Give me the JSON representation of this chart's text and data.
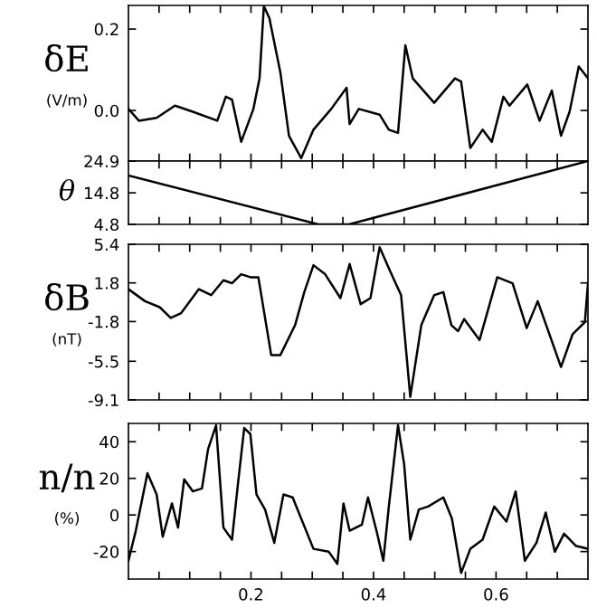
{
  "chart_data": [
    {
      "type": "line",
      "ylabel": "δE\n(V/m)",
      "tick_labels": "y",
      "xlim": [
        0,
        0.75
      ],
      "ylim": [
        -0.124,
        0.258
      ],
      "xticks": [
        {
          "value": 0.05,
          "label": null
        },
        {
          "value": 0.1,
          "label": null
        },
        {
          "value": 0.15,
          "label": null
        },
        {
          "value": 0.2,
          "label": null
        },
        {
          "value": 0.25,
          "label": null
        },
        {
          "value": 0.3,
          "label": null
        },
        {
          "value": 0.35,
          "label": null
        },
        {
          "value": 0.4,
          "label": null
        },
        {
          "value": 0.45,
          "label": null
        },
        {
          "value": 0.5,
          "label": null
        },
        {
          "value": 0.55,
          "label": null
        },
        {
          "value": 0.6,
          "label": null
        },
        {
          "value": 0.65,
          "label": null
        },
        {
          "value": 0.7,
          "label": null
        }
      ],
      "yticks": [
        {
          "value": 0,
          "label": "0.0"
        },
        {
          "value": 0.2,
          "label": "0.2"
        }
      ],
      "series": [
        {
          "color": "#000000",
          "x": [
            0,
            0.017,
            0.046,
            0.076,
            0.105,
            0.145,
            0.159,
            0.169,
            0.184,
            0.204,
            0.214,
            0.221,
            0.23,
            0.248,
            0.262,
            0.282,
            0.302,
            0.331,
            0.356,
            0.361,
            0.376,
            0.41,
            0.425,
            0.44,
            0.452,
            0.464,
            0.499,
            0.533,
            0.543,
            0.558,
            0.578,
            0.593,
            0.612,
            0.622,
            0.651,
            0.671,
            0.691,
            0.706,
            0.72,
            0.735,
            0.75
          ],
          "values": [
            0.004,
            -0.025,
            -0.018,
            0.012,
            -0.003,
            -0.025,
            0.034,
            0.027,
            -0.077,
            0.004,
            0.079,
            0.256,
            0.227,
            0.093,
            -0.062,
            -0.117,
            -0.047,
            0.004,
            0.056,
            -0.033,
            0.004,
            -0.01,
            -0.047,
            -0.055,
            0.16,
            0.079,
            0.019,
            0.079,
            0.071,
            -0.092,
            -0.047,
            -0.077,
            0.034,
            0.012,
            0.064,
            -0.025,
            0.049,
            -0.062,
            -0.003,
            0.108,
            0.079
          ]
        }
      ]
    },
    {
      "type": "line",
      "ylabel": "θ",
      "tick_labels": "y",
      "xlim": [
        0,
        0.75
      ],
      "ylim": [
        4.8,
        24.9
      ],
      "xticks": [
        {
          "value": 0.05,
          "label": null
        },
        {
          "value": 0.1,
          "label": null
        },
        {
          "value": 0.15,
          "label": null
        },
        {
          "value": 0.2,
          "label": null
        },
        {
          "value": 0.25,
          "label": null
        },
        {
          "value": 0.3,
          "label": null
        },
        {
          "value": 0.35,
          "label": null
        },
        {
          "value": 0.4,
          "label": null
        },
        {
          "value": 0.45,
          "label": null
        },
        {
          "value": 0.5,
          "label": null
        },
        {
          "value": 0.55,
          "label": null
        },
        {
          "value": 0.6,
          "label": null
        },
        {
          "value": 0.65,
          "label": null
        },
        {
          "value": 0.7,
          "label": null
        }
      ],
      "yticks": [
        4.8,
        14.8,
        24.9
      ],
      "series": [
        {
          "color": "#000000",
          "x": [
            0,
            0.31,
            0.36,
            0.75
          ],
          "values": [
            20.3,
            4.8,
            4.8,
            24.9
          ]
        }
      ]
    },
    {
      "type": "line",
      "ylabel": "δB\n(nT)",
      "tick_labels": "y",
      "xlim": [
        0,
        0.75
      ],
      "ylim": [
        -9.1,
        5.4
      ],
      "xticks": [
        {
          "value": 0.05,
          "label": null
        },
        {
          "value": 0.1,
          "label": null
        },
        {
          "value": 0.15,
          "label": null
        },
        {
          "value": 0.2,
          "label": null
        },
        {
          "value": 0.25,
          "label": null
        },
        {
          "value": 0.3,
          "label": null
        },
        {
          "value": 0.35,
          "label": null
        },
        {
          "value": 0.4,
          "label": null
        },
        {
          "value": 0.45,
          "label": null
        },
        {
          "value": 0.5,
          "label": null
        },
        {
          "value": 0.55,
          "label": null
        },
        {
          "value": 0.6,
          "label": null
        },
        {
          "value": 0.65,
          "label": null
        },
        {
          "value": 0.7,
          "label": null
        }
      ],
      "yticks": [
        -9.1,
        -5.5,
        -1.8,
        1.8,
        5.4
      ],
      "series": [
        {
          "color": "#000000",
          "x": [
            0,
            0.027,
            0.051,
            0.069,
            0.086,
            0.115,
            0.135,
            0.155,
            0.169,
            0.184,
            0.199,
            0.212,
            0.233,
            0.248,
            0.272,
            0.287,
            0.302,
            0.321,
            0.346,
            0.361,
            0.379,
            0.395,
            0.41,
            0.425,
            0.445,
            0.46,
            0.478,
            0.499,
            0.514,
            0.527,
            0.538,
            0.548,
            0.573,
            0.602,
            0.627,
            0.65,
            0.668,
            0.706,
            0.725,
            0.745,
            0.75
          ],
          "values": [
            1.22,
            0.1,
            -0.46,
            -1.46,
            -1.01,
            1.22,
            0.66,
            2.05,
            1.77,
            2.61,
            2.33,
            2.33,
            -4.92,
            -4.92,
            -2.13,
            0.94,
            3.45,
            2.61,
            0.38,
            3.56,
            -0.18,
            0.38,
            5.12,
            3.17,
            0.66,
            -8.82,
            -2.13,
            0.66,
            0.94,
            -2.13,
            -2.69,
            -1.57,
            -3.52,
            2.33,
            1.77,
            -2.41,
            0.1,
            -6.03,
            -2.97,
            -1.85,
            1.77
          ]
        }
      ]
    },
    {
      "type": "line",
      "ylabel": "n/n\n(%)",
      "xlim": [
        0,
        0.75
      ],
      "ylim": [
        -35,
        50
      ],
      "xticks": [
        {
          "value": 0.05,
          "label": null
        },
        {
          "value": 0.1,
          "label": null
        },
        {
          "value": 0.15,
          "label": null
        },
        0.2,
        {
          "value": 0.25,
          "label": null
        },
        {
          "value": 0.3,
          "label": null
        },
        {
          "value": 0.35,
          "label": null
        },
        0.4,
        {
          "value": 0.45,
          "label": null
        },
        {
          "value": 0.5,
          "label": null
        },
        {
          "value": 0.55,
          "label": null
        },
        0.6,
        {
          "value": 0.65,
          "label": null
        },
        {
          "value": 0.7,
          "label": null
        }
      ],
      "yticks": [
        -20,
        0,
        20,
        40
      ],
      "series": [
        {
          "color": "#000000",
          "x": [
            0,
            0.012,
            0.031,
            0.046,
            0.056,
            0.071,
            0.081,
            0.091,
            0.105,
            0.12,
            0.13,
            0.143,
            0.155,
            0.169,
            0.179,
            0.189,
            0.199,
            0.209,
            0.223,
            0.238,
            0.253,
            0.268,
            0.282,
            0.302,
            0.327,
            0.341,
            0.351,
            0.361,
            0.381,
            0.391,
            0.406,
            0.416,
            0.425,
            0.44,
            0.45,
            0.46,
            0.474,
            0.489,
            0.514,
            0.528,
            0.543,
            0.558,
            0.578,
            0.597,
            0.617,
            0.632,
            0.647,
            0.666,
            0.681,
            0.696,
            0.711,
            0.73,
            0.75
          ],
          "values": [
            -25,
            -8.6,
            22.8,
            11.2,
            -11.9,
            6.3,
            -6.9,
            19.5,
            12.9,
            14.5,
            36,
            49,
            -6.9,
            -13.5,
            17.8,
            47.5,
            44.2,
            11.2,
            3.0,
            -15.2,
            11.2,
            9.6,
            -2.0,
            -18.5,
            -20.1,
            -26.7,
            6.3,
            -8.6,
            -5.3,
            9.6,
            -10.2,
            -25,
            4.6,
            49,
            27.7,
            -13.5,
            3.0,
            4.6,
            9.6,
            -2.0,
            -31.7,
            -18.5,
            -13.5,
            4.6,
            -3.6,
            12.9,
            -25,
            -15.2,
            1.3,
            -20.1,
            -10.2,
            -16.8,
            -18.5
          ]
        }
      ]
    }
  ]
}
